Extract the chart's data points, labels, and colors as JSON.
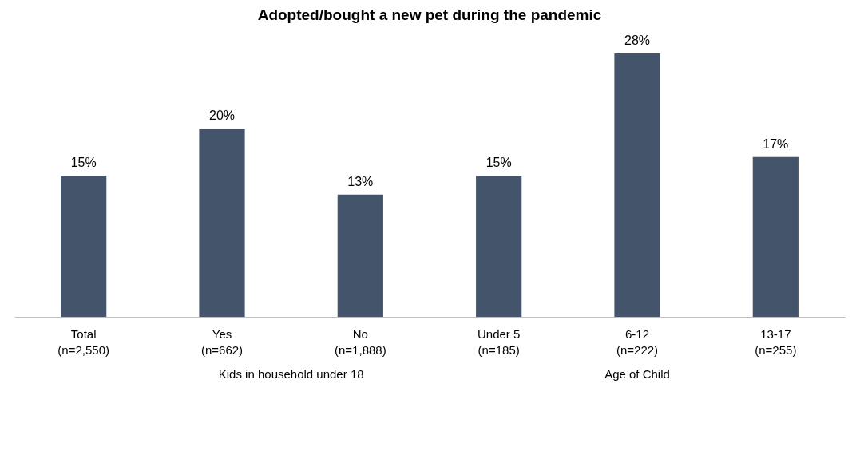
{
  "chart_data": {
    "type": "bar",
    "title": "Adopted/bought a new pet during the pandemic",
    "categories": [
      "Total (n=2,550)",
      "Yes (n=662)",
      "No (n=1,888)",
      "Under 5 (n=185)",
      "6-12 (n=222)",
      "13-17 (n=255)"
    ],
    "values": [
      15,
      20,
      13,
      15,
      28,
      17
    ],
    "value_labels": [
      "15%",
      "20%",
      "13%",
      "15%",
      "28%",
      "17%"
    ],
    "color": "#44546a",
    "tick_labels": "x",
    "annotations": [
      "Kids in household under 18",
      "Age of Child"
    ]
  }
}
